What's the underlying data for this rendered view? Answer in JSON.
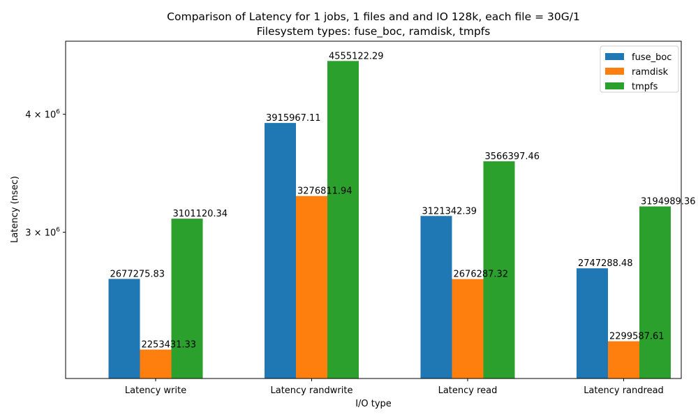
{
  "chart_data": {
    "type": "bar",
    "title": "Comparison of Latency for 1 jobs, 1 files and  and IO 128k, each file = 30G/1",
    "subtitle": "Filesystem types: fuse_boc, ramdisk, tmpfs",
    "xlabel": "I/O type",
    "ylabel": "Latency (nsec)",
    "yscale": "log",
    "ylim": [
      2100000,
      4780000
    ],
    "yticks": [
      {
        "value": 3000000,
        "mantissa": "3",
        "base": "10",
        "exp": "6"
      },
      {
        "value": 4000000,
        "mantissa": "4",
        "base": "10",
        "exp": "6"
      }
    ],
    "categories": [
      "Latency write",
      "Latency randwrite",
      "Latency read",
      "Latency randread"
    ],
    "series": [
      {
        "name": "fuse_boc",
        "color": "#1f77b4",
        "values": [
          2677275.83,
          3915967.11,
          3121342.39,
          2747288.48
        ],
        "labels": [
          "2677275.83",
          "3915967.11",
          "3121342.39",
          "2747288.48"
        ]
      },
      {
        "name": "ramdisk",
        "color": "#ff7f0e",
        "values": [
          2253431.33,
          3276811.94,
          2676287.32,
          2299587.61
        ],
        "labels": [
          "2253431.33",
          "3276811.94",
          "2676287.32",
          "2299587.61"
        ]
      },
      {
        "name": "tmpfs",
        "color": "#2ca02c",
        "values": [
          3101120.34,
          4555122.29,
          3566397.46,
          3194989.36
        ],
        "labels": [
          "3101120.34",
          "4555122.29",
          "3566397.46",
          "3194989.36"
        ]
      }
    ],
    "legend": {
      "position": "top-right"
    },
    "grid": false
  }
}
